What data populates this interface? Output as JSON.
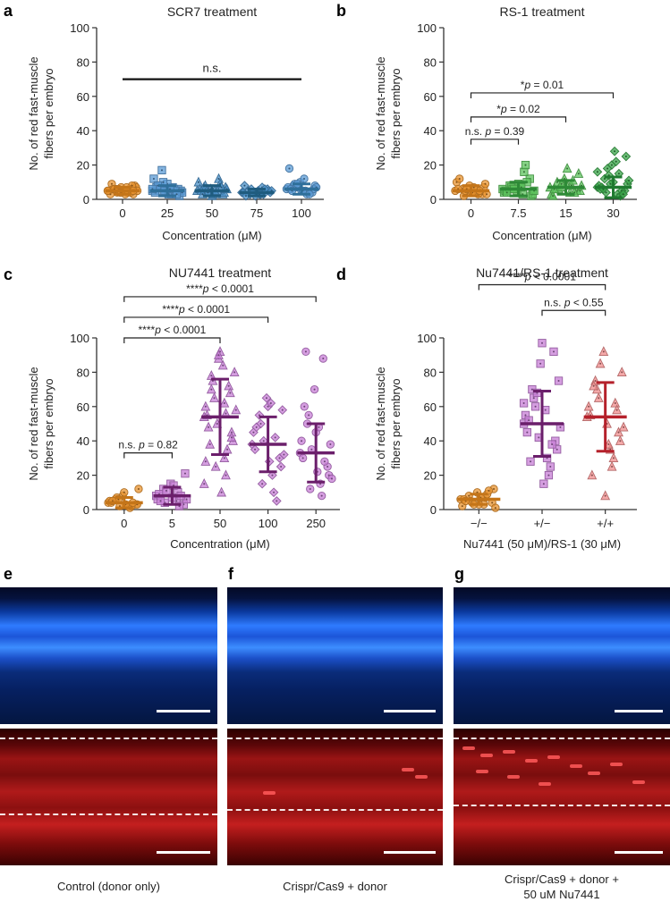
{
  "panel_labels": [
    "a",
    "b",
    "c",
    "d",
    "e",
    "f",
    "g"
  ],
  "chart_data": [
    {
      "type": "scatter",
      "title": "SCR7 treatment",
      "xlabel": "Concentration (μM)",
      "ylabel": "No. of red fast-muscle fibers per embryo",
      "ylim": [
        0,
        100
      ],
      "yticks": [
        "0",
        "20",
        "40",
        "60",
        "80",
        "100"
      ],
      "categories": [
        "0",
        "25",
        "50",
        "75",
        "100"
      ],
      "colors": [
        "#e8932f",
        "#5b9bd5",
        "#4a90c8",
        "#4a90c8",
        "#5b9bd5"
      ],
      "marker": [
        "circle",
        "square",
        "triangle",
        "diamond",
        "circle"
      ],
      "means": [
        5,
        5,
        5,
        4,
        6
      ],
      "sd": [
        2,
        3,
        3,
        2,
        3
      ],
      "points": [
        [
          5,
          4,
          6,
          3,
          7,
          5,
          4,
          6,
          8,
          5,
          3,
          6,
          4,
          7,
          5,
          9,
          4,
          6,
          5,
          3,
          6,
          8,
          4,
          5,
          7,
          6,
          5,
          4
        ],
        [
          5,
          3,
          8,
          6,
          4,
          12,
          7,
          5,
          2,
          9,
          4,
          6,
          17,
          5,
          3,
          7,
          5,
          10,
          4,
          6,
          8,
          3,
          5,
          6
        ],
        [
          5,
          4,
          7,
          3,
          6,
          10,
          5,
          8,
          4,
          2,
          6,
          12,
          5,
          7,
          3,
          5,
          9,
          4,
          6,
          5,
          3,
          7
        ],
        [
          4,
          3,
          5,
          6,
          2,
          4,
          7,
          3,
          5,
          4,
          8,
          3,
          6,
          4,
          5,
          2,
          6,
          4,
          5,
          3
        ],
        [
          6,
          5,
          8,
          4,
          10,
          7,
          3,
          9,
          6,
          5,
          18,
          4,
          7,
          8,
          5,
          6,
          3,
          9,
          7,
          12,
          5
        ]
      ],
      "annotations": [
        {
          "text": "n.s.",
          "from": 0,
          "to": 4,
          "y": 70
        }
      ]
    },
    {
      "type": "scatter",
      "title": "RS-1 treatment",
      "xlabel": "Concentration (μM)",
      "ylabel": "No. of red fast-muscle fibers per embryo",
      "ylim": [
        0,
        100
      ],
      "yticks": [
        "0",
        "20",
        "40",
        "60",
        "80",
        "100"
      ],
      "categories": [
        "0",
        "7.5",
        "15",
        "30"
      ],
      "colors": [
        "#e8932f",
        "#5cc35c",
        "#5cc35c",
        "#3aa64a"
      ],
      "marker": [
        "circle",
        "square",
        "triangle",
        "diamond"
      ],
      "means": [
        5,
        6,
        7,
        7
      ],
      "sd": [
        3,
        4,
        4,
        6
      ],
      "points": [
        [
          5,
          4,
          6,
          3,
          8,
          10,
          5,
          2,
          7,
          4,
          6,
          3,
          5,
          9,
          4,
          12,
          5,
          6,
          3,
          7
        ],
        [
          6,
          3,
          8,
          12,
          5,
          4,
          16,
          7,
          2,
          9,
          5,
          20,
          6,
          3,
          8,
          4,
          10,
          6,
          5,
          7
        ],
        [
          7,
          4,
          10,
          5,
          12,
          3,
          8,
          6,
          15,
          9,
          2,
          11,
          7,
          5,
          18,
          6,
          4,
          9,
          8
        ],
        [
          7,
          3,
          12,
          5,
          20,
          8,
          15,
          4,
          25,
          10,
          6,
          2,
          18,
          9,
          28,
          7,
          5,
          14,
          11,
          22,
          6,
          3,
          9,
          16
        ]
      ],
      "annotations": [
        {
          "text": "n.s.",
          "p": "p",
          "eq": " = 0.39",
          "from": 0,
          "to": 1,
          "y": 35
        },
        {
          "text": "*",
          "p": "p",
          "eq": " = 0.02",
          "from": 0,
          "to": 2,
          "y": 48
        },
        {
          "text": "*",
          "p": "p",
          "eq": " = 0.01",
          "from": 0,
          "to": 3,
          "y": 62
        }
      ]
    },
    {
      "type": "scatter",
      "title": "NU7441 treatment",
      "xlabel": "Concentration (μM)",
      "ylabel": "No. of red fast-muscle fibers per embryo",
      "ylim": [
        0,
        100
      ],
      "yticks": [
        "0",
        "20",
        "40",
        "60",
        "80",
        "100"
      ],
      "categories": [
        "0",
        "5",
        "50",
        "100",
        "250"
      ],
      "colors": [
        "#e8932f",
        "#c77dd6",
        "#c77dd6",
        "#c77dd6",
        "#c77dd6"
      ],
      "marker": [
        "circle",
        "square",
        "triangle",
        "diamond",
        "circle"
      ],
      "means": [
        4,
        8,
        54,
        38,
        33
      ],
      "sd": [
        3,
        5,
        22,
        16,
        17
      ],
      "points": [
        [
          4,
          2,
          6,
          3,
          8,
          5,
          1,
          7,
          3,
          10,
          4,
          2,
          6,
          12,
          3,
          5,
          4,
          2
        ],
        [
          8,
          5,
          12,
          3,
          15,
          6,
          10,
          4,
          21,
          7,
          9,
          2,
          11,
          6,
          14,
          5,
          8
        ],
        [
          54,
          30,
          70,
          45,
          88,
          60,
          20,
          75,
          40,
          92,
          55,
          35,
          65,
          80,
          10,
          48,
          72,
          25,
          58,
          84,
          38,
          68,
          50,
          15,
          62,
          78,
          42,
          90,
          28,
          56
        ],
        [
          38,
          20,
          55,
          30,
          65,
          45,
          10,
          50,
          25,
          60,
          35,
          42,
          15,
          58,
          28,
          48,
          5,
          40,
          32,
          62
        ],
        [
          33,
          15,
          50,
          25,
          70,
          40,
          8,
          55,
          20,
          45,
          30,
          88,
          12,
          38,
          22,
          60,
          28,
          35,
          18,
          48,
          92
        ]
      ],
      "annotations": [
        {
          "text": "n.s.",
          "p": "p",
          "eq": " = 0.82",
          "from": 0,
          "to": 1,
          "y": 33
        },
        {
          "text": "****",
          "p": "p",
          "eq": " < 0.0001",
          "from": 0,
          "to": 2,
          "y": 100
        },
        {
          "text": "****",
          "p": "p",
          "eq": " < 0.0001",
          "from": 0,
          "to": 3,
          "y": 112
        },
        {
          "text": "****",
          "p": "p",
          "eq": " < 0.0001",
          "from": 0,
          "to": 4,
          "y": 124
        }
      ]
    },
    {
      "type": "scatter",
      "title": "Nu7441/RS-1 treatment",
      "xlabel": "Nu7441 (50 μM)/RS-1 (30 μM)",
      "ylabel": "No. of red fast-muscle fibers per embryo",
      "ylim": [
        0,
        100
      ],
      "yticks": [
        "0",
        "20",
        "40",
        "60",
        "80",
        "100"
      ],
      "categories": [
        "−/−",
        "+/−",
        "+/+"
      ],
      "colors": [
        "#e8932f",
        "#c77dd6",
        "#f08c8c"
      ],
      "marker": [
        "circle",
        "square",
        "triangle"
      ],
      "means": [
        6,
        50,
        54
      ],
      "sd": [
        3,
        19,
        20
      ],
      "points": [
        [
          6,
          3,
          8,
          4,
          10,
          2,
          7,
          5,
          12,
          3,
          6,
          9,
          4,
          1,
          7,
          5,
          11,
          3
        ],
        [
          50,
          30,
          70,
          40,
          85,
          55,
          20,
          65,
          35,
          97,
          45,
          25,
          60,
          75,
          15,
          52,
          38,
          68,
          48,
          58,
          28,
          92,
          42,
          62
        ],
        [
          54,
          35,
          75,
          45,
          92,
          60,
          25,
          70,
          40,
          8,
          55,
          30,
          65,
          80,
          50,
          20,
          62,
          85,
          48,
          38,
          72,
          58
        ]
      ],
      "annotations": [
        {
          "text": "n.s.",
          "p": "p",
          "eq": " < 0.55",
          "from": 1,
          "to": 2,
          "y": 116
        },
        {
          "text": "****",
          "p": "p",
          "eq": " < 0.0001",
          "from": 0,
          "to": 2,
          "y": 131
        }
      ]
    }
  ],
  "photos": {
    "captions": [
      [
        "Control (donor only)"
      ],
      [
        "Crispr/Cas9 + donor"
      ],
      [
        "Crispr/Cas9 + donor +",
        "50 uM Nu7441"
      ]
    ]
  }
}
